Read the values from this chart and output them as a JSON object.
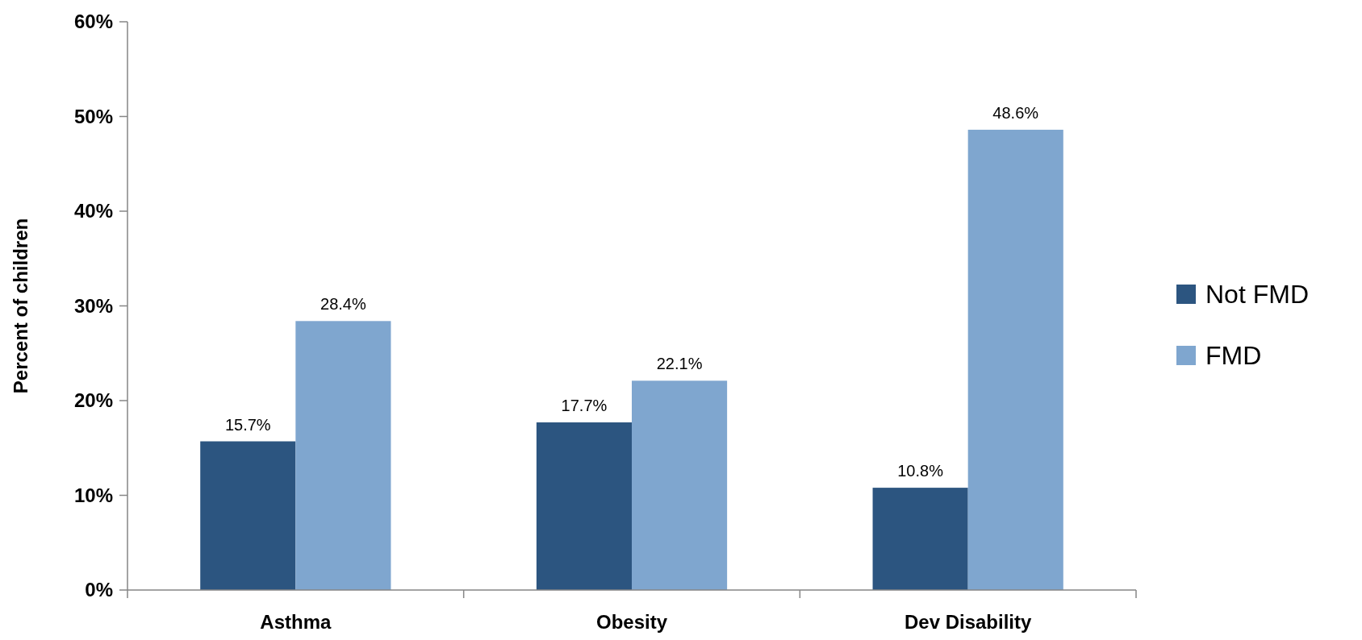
{
  "chart_data": {
    "type": "bar",
    "ylabel": "Percent of children",
    "categories": [
      "Asthma",
      "Obesity",
      "Dev Disability"
    ],
    "series": [
      {
        "name": "Not FMD",
        "color": "#2c5580",
        "values": [
          15.7,
          17.7,
          10.8
        ],
        "value_labels": [
          "15.7%",
          "17.7%",
          "10.8%"
        ]
      },
      {
        "name": "FMD",
        "color": "#7fa6cf",
        "values": [
          28.4,
          22.1,
          48.6
        ],
        "value_labels": [
          "28.4%",
          "22.1%",
          "48.6%"
        ]
      }
    ],
    "ylim": [
      0,
      60
    ],
    "yticks": [
      {
        "value": 0,
        "label": "0%"
      },
      {
        "value": 10,
        "label": "10%"
      },
      {
        "value": 20,
        "label": "20%"
      },
      {
        "value": 30,
        "label": "30%"
      },
      {
        "value": 40,
        "label": "40%"
      },
      {
        "value": 50,
        "label": "50%"
      },
      {
        "value": 60,
        "label": "60%"
      }
    ],
    "grid": false,
    "legend": "right"
  }
}
